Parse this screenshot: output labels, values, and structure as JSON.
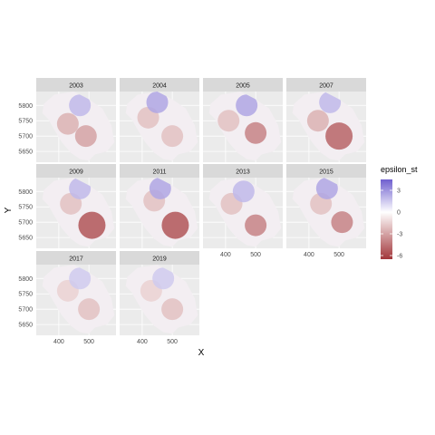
{
  "chart_data": {
    "type": "heatmap",
    "xlabel": "X",
    "ylabel": "Y",
    "x_ticks": [
      400,
      500
    ],
    "y_ticks": [
      5650,
      5700,
      5750,
      5800
    ],
    "xlim": [
      325,
      590
    ],
    "ylim": [
      5615,
      5845
    ],
    "panels": [
      {
        "year": "2003",
        "hotspots": [
          {
            "x": 430,
            "y": 5740,
            "v": -2.5
          },
          {
            "x": 490,
            "y": 5700,
            "v": -3
          },
          {
            "x": 470,
            "y": 5800,
            "v": 2
          }
        ]
      },
      {
        "year": "2004",
        "hotspots": [
          {
            "x": 420,
            "y": 5760,
            "v": -2
          },
          {
            "x": 500,
            "y": 5700,
            "v": -2
          },
          {
            "x": 450,
            "y": 5810,
            "v": 2.5
          }
        ]
      },
      {
        "year": "2005",
        "hotspots": [
          {
            "x": 410,
            "y": 5750,
            "v": -2
          },
          {
            "x": 500,
            "y": 5710,
            "v": -4
          },
          {
            "x": 470,
            "y": 5800,
            "v": 2.5
          }
        ]
      },
      {
        "year": "2007",
        "hotspots": [
          {
            "x": 430,
            "y": 5750,
            "v": -2.5
          },
          {
            "x": 500,
            "y": 5700,
            "v": -5
          },
          {
            "x": 470,
            "y": 5810,
            "v": 2
          }
        ]
      },
      {
        "year": "2009",
        "hotspots": [
          {
            "x": 440,
            "y": 5760,
            "v": -2
          },
          {
            "x": 510,
            "y": 5690,
            "v": -5.5
          },
          {
            "x": 470,
            "y": 5810,
            "v": 2
          }
        ]
      },
      {
        "year": "2011",
        "hotspots": [
          {
            "x": 440,
            "y": 5770,
            "v": -2
          },
          {
            "x": 510,
            "y": 5690,
            "v": -5.5
          },
          {
            "x": 460,
            "y": 5810,
            "v": 2.5
          }
        ]
      },
      {
        "year": "2013",
        "hotspots": [
          {
            "x": 420,
            "y": 5760,
            "v": -2
          },
          {
            "x": 500,
            "y": 5690,
            "v": -4
          },
          {
            "x": 460,
            "y": 5800,
            "v": 2
          }
        ]
      },
      {
        "year": "2015",
        "hotspots": [
          {
            "x": 440,
            "y": 5760,
            "v": -2
          },
          {
            "x": 510,
            "y": 5700,
            "v": -4
          },
          {
            "x": 460,
            "y": 5810,
            "v": 2.5
          }
        ]
      },
      {
        "year": "2017",
        "hotspots": [
          {
            "x": 430,
            "y": 5760,
            "v": -1.5
          },
          {
            "x": 500,
            "y": 5700,
            "v": -2
          },
          {
            "x": 470,
            "y": 5800,
            "v": 1.5
          }
        ]
      },
      {
        "year": "2019",
        "hotspots": [
          {
            "x": 430,
            "y": 5760,
            "v": -1.5
          },
          {
            "x": 500,
            "y": 5700,
            "v": -2
          },
          {
            "x": 470,
            "y": 5800,
            "v": 1.5
          }
        ]
      }
    ],
    "legend": {
      "title": "epsilon_st",
      "labels": [
        "3",
        "0",
        "-3",
        "-6"
      ],
      "values": [
        3,
        0,
        -3,
        -6
      ],
      "range": [
        -6.5,
        4.5
      ],
      "colors": {
        "high": "#6f5fcf",
        "mid": "#ffffff",
        "low": "#a2363a"
      },
      "position": "right"
    },
    "grid": true,
    "panel_background": "#ebebeb",
    "strip_background": "#d9d9d9"
  }
}
